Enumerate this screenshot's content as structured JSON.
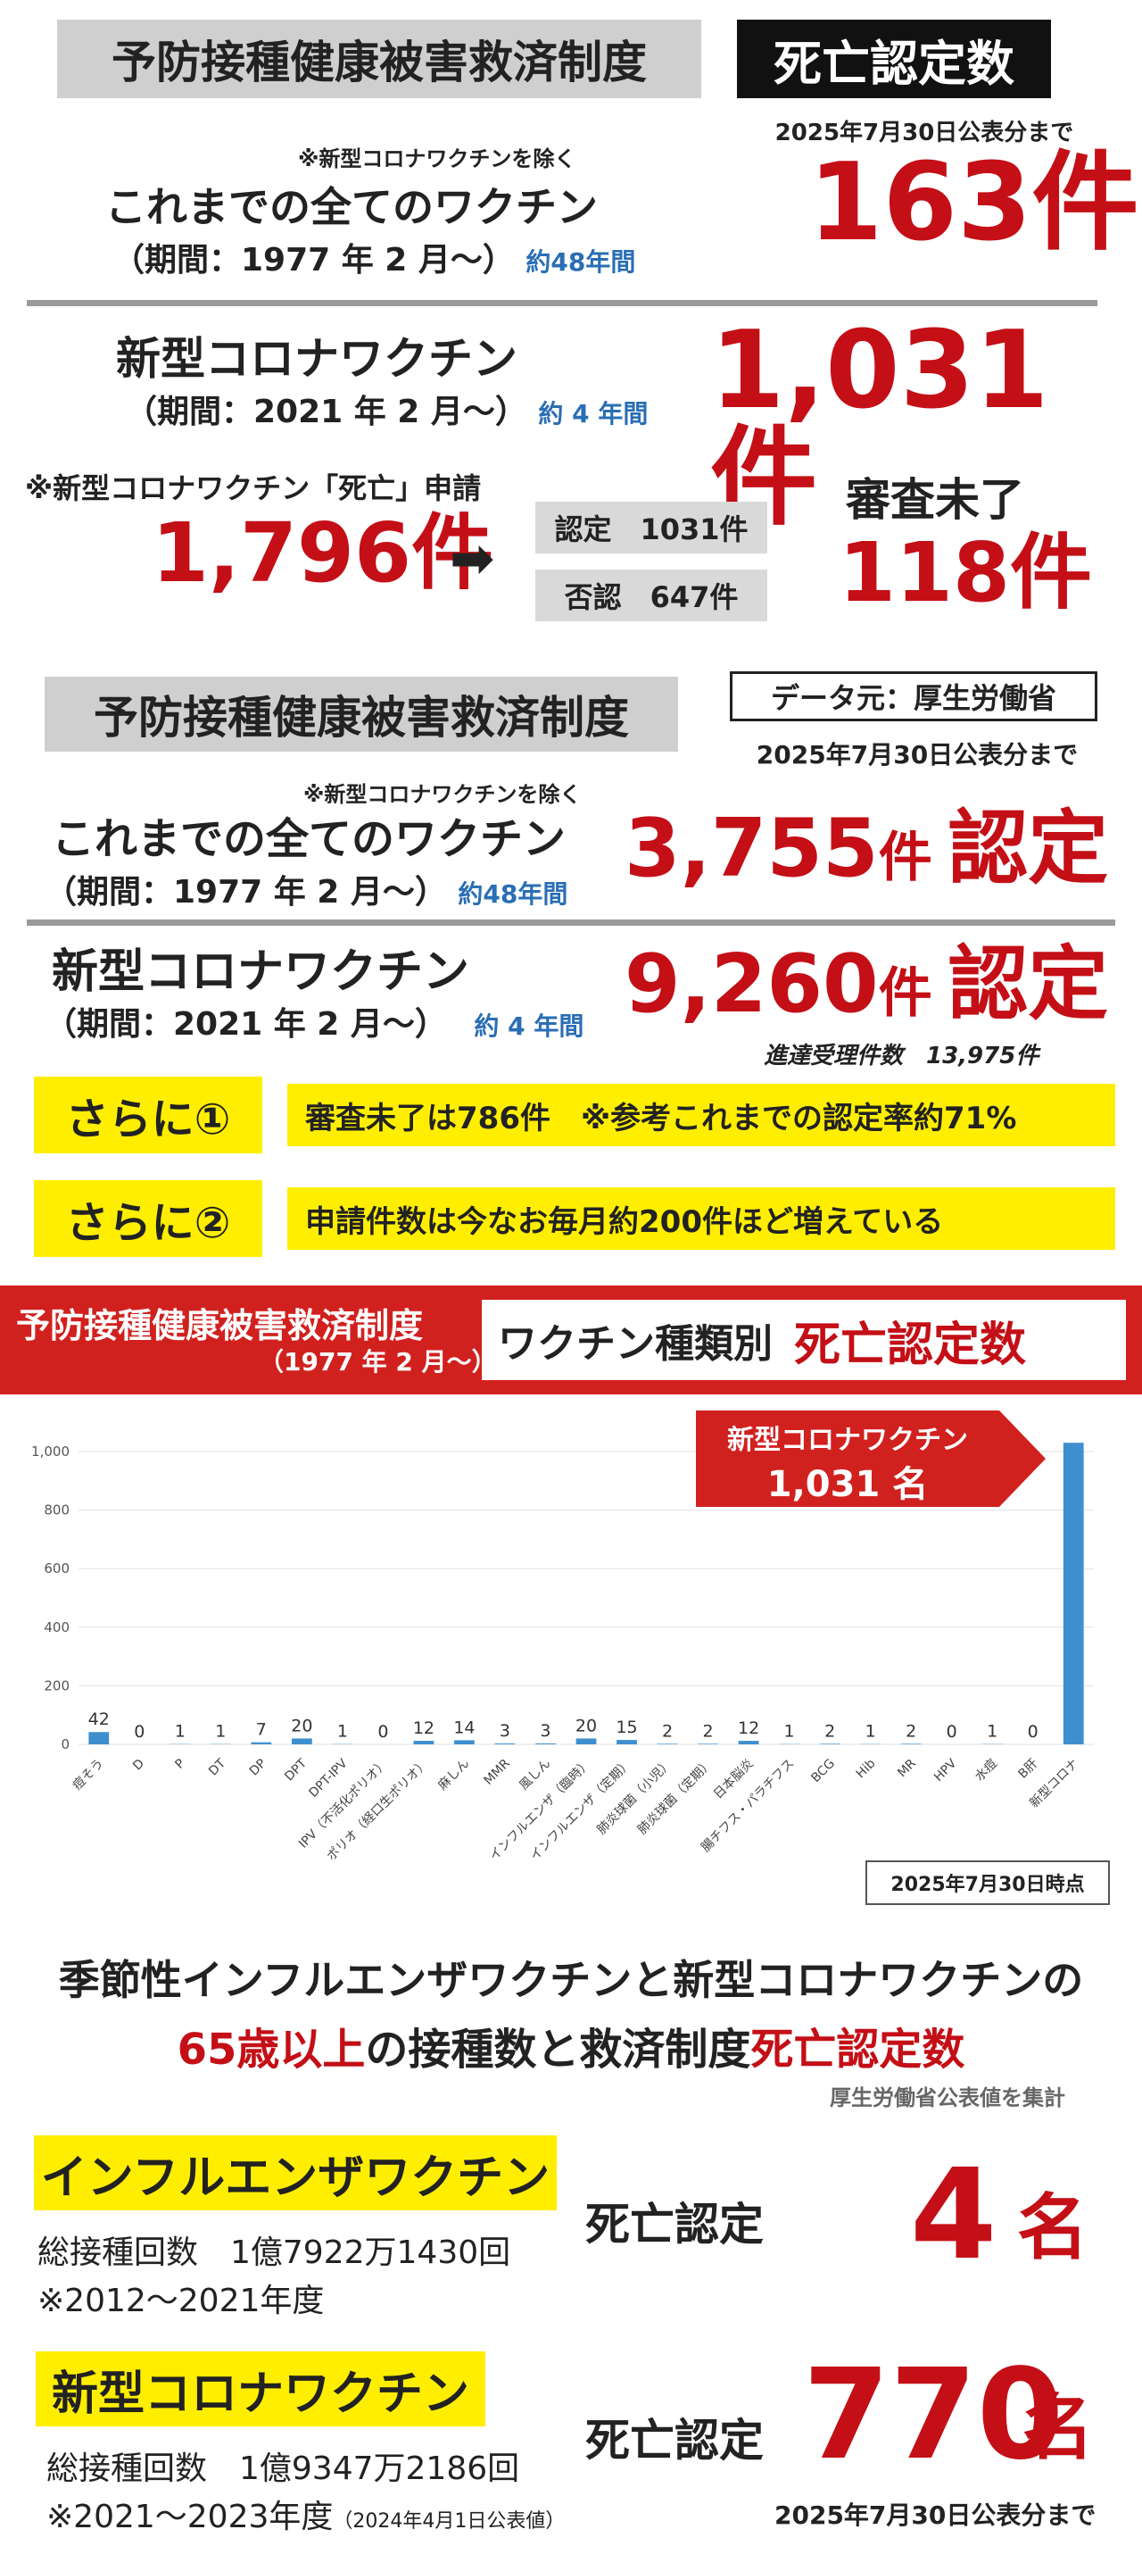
{
  "sec1": {
    "title": "予防接種健康被害救済制度",
    "badge": "死亡認定数",
    "date_note": "2025年7月30日公表分まで",
    "exclude_note": "※新型コロナワクチンを除く",
    "all_label": "これまでの全てのワクチン",
    "all_period": "（期間：1977 年 2 月〜）",
    "all_years": "約48年間",
    "all_count": "163件",
    "covid_label": "新型コロナワクチン",
    "covid_period": "（期間：2021 年 2 月〜）",
    "covid_years": "約 4 年間",
    "covid_count": "1,031件",
    "applied_note": "※新型コロナワクチン「死亡」申請",
    "applied_count": "1,796件",
    "arrow": "➡",
    "approved": "認定　1031件",
    "denied": "否認　647件",
    "pending_label": "審査未了",
    "pending_count": "118件"
  },
  "sec2": {
    "title": "予防接種健康被害救済制度",
    "source": "データ元：厚生労働省",
    "date_note": "2025年7月30日公表分まで",
    "exclude_note": "※新型コロナワクチンを除く",
    "all_label": "これまでの全てのワクチン",
    "all_period": "（期間：1977 年 2 月〜）",
    "all_years": "約48年間",
    "all_count": "3,755",
    "unit": "件",
    "nintei": "認定",
    "covid_label": "新型コロナワクチン",
    "covid_period": "（期間：2021 年 2 月〜）",
    "covid_years": "約 4 年間",
    "covid_count": "9,260",
    "covid_note": "進達受理件数　13,975件",
    "more1_label": "さらに①",
    "more1_text": "審査未了は786件　※参考これまでの認定率約71%",
    "more2_label": "さらに②",
    "more2_text": "申請件数は今なお毎月約200件ほど増えている"
  },
  "sec3": {
    "left_title": "予防接種健康被害救済制度",
    "left_sub": "（1977 年 2 月〜）",
    "right_title": "ワクチン種類別",
    "right_title_red": "死亡認定数",
    "callout_line1": "新型コロナワクチン",
    "callout_line2": "1,031 名",
    "date_box": "2025年7月30日時点"
  },
  "chart_data": {
    "type": "bar",
    "categories": [
      "痘そう",
      "D",
      "P",
      "DT",
      "DP",
      "DPT",
      "DPT-IPV",
      "IPV（不活化ポリオ）",
      "ポリオ（経口生ポリオ）",
      "麻しん",
      "MMR",
      "風しん",
      "インフルエンザ（臨時）",
      "インフルエンザ（定期）",
      "肺炎球菌（小児）",
      "肺炎球菌（定期）",
      "日本脳炎",
      "腸チフス・パラチフス",
      "BCG",
      "Hib",
      "MR",
      "HPV",
      "水痘",
      "B肝",
      "新型コロナ"
    ],
    "values": [
      42,
      0,
      1,
      1,
      7,
      20,
      1,
      0,
      12,
      14,
      3,
      3,
      20,
      15,
      2,
      2,
      12,
      1,
      2,
      1,
      2,
      0,
      1,
      0,
      1031
    ],
    "ylim": [
      0,
      1000
    ],
    "yticks": [
      "0",
      "200",
      "400",
      "600",
      "800",
      "1,000"
    ],
    "grid": true,
    "bar_color": "#3f8fd0"
  },
  "sec4": {
    "heading_line1": "季節性インフルエンザワクチンと新型コロナワクチンの",
    "heading_line2_red1": "65歳以上",
    "heading_line2_mid": "の接種数と救済制度",
    "heading_line2_red2": "死亡認定数",
    "source": "厚生労働省公表値を集計",
    "flu_label": "インフルエンザワクチン",
    "flu_doses": "総接種回数　1億7922万1430回",
    "flu_years": "※2012〜2021年度",
    "flu_death_label": "死亡認定",
    "flu_num": "4",
    "flu_unit": "名",
    "covid_label": "新型コロナワクチン",
    "covid_doses": "総接種回数　1億9347万2186回",
    "covid_years": "※2021〜2023年度",
    "covid_years_note": "（2024年4月1日公表値）",
    "covid_death_label": "死亡認定",
    "covid_num": "770",
    "covid_unit": "名",
    "date_note": "2025年7月30日公表分まで"
  }
}
